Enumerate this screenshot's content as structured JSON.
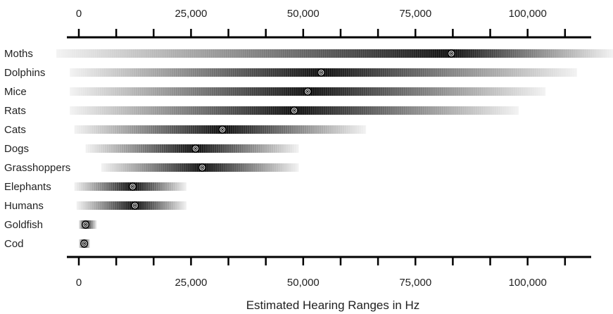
{
  "chart_data": {
    "type": "range",
    "title": "",
    "xlabel": "Estimated Hearing Ranges in Hz",
    "ylabel": "",
    "xlim": [
      0,
      113000
    ],
    "x_ticks": [
      0,
      25000,
      50000,
      75000,
      100000
    ],
    "x_tick_labels": [
      "0",
      "25,000",
      "50,000",
      "75,000",
      "100,000"
    ],
    "minor_tick_step": 8333,
    "grid": false,
    "series": [
      {
        "name": "Moths",
        "min": -5000,
        "max": 120000,
        "peak": 83000
      },
      {
        "name": "Dolphins",
        "min": -2000,
        "max": 111000,
        "peak": 54000
      },
      {
        "name": "Mice",
        "min": -2000,
        "max": 104000,
        "peak": 51000
      },
      {
        "name": "Rats",
        "min": -2000,
        "max": 98000,
        "peak": 48000
      },
      {
        "name": "Cats",
        "min": -1000,
        "max": 64000,
        "peak": 32000
      },
      {
        "name": "Dogs",
        "min": 1500,
        "max": 49000,
        "peak": 26000
      },
      {
        "name": "Grasshoppers",
        "min": 5000,
        "max": 49000,
        "peak": 27500
      },
      {
        "name": "Elephants",
        "min": -1000,
        "max": 24000,
        "peak": 12000
      },
      {
        "name": "Humans",
        "min": -500,
        "max": 24000,
        "peak": 12500
      },
      {
        "name": "Goldfish",
        "min": 0,
        "max": 4000,
        "peak": 1500
      },
      {
        "name": "Cod",
        "min": 0,
        "max": 2500,
        "peak": 1200
      }
    ]
  }
}
